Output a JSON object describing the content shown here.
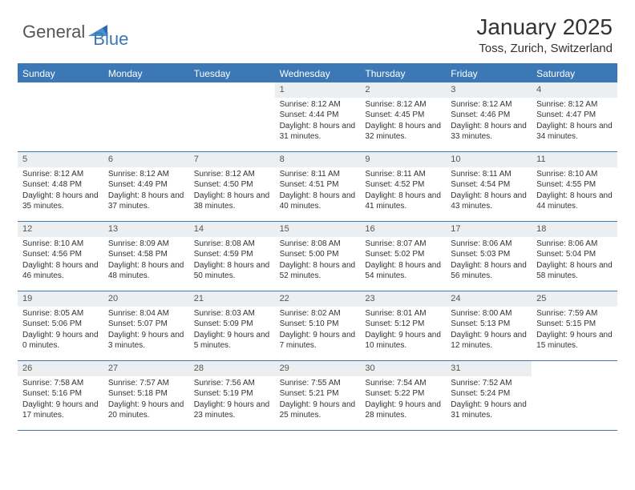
{
  "brand": {
    "part1": "General",
    "part2": "Blue"
  },
  "title": "January 2025",
  "location": "Toss, Zurich, Switzerland",
  "header_bg": "#3b78b5",
  "day_header_bg": "#eceff2",
  "weekdays": [
    "Sunday",
    "Monday",
    "Tuesday",
    "Wednesday",
    "Thursday",
    "Friday",
    "Saturday"
  ],
  "weeks": [
    [
      null,
      null,
      null,
      {
        "n": "1",
        "sr": "8:12 AM",
        "ss": "4:44 PM",
        "dh": "8",
        "dm": "31"
      },
      {
        "n": "2",
        "sr": "8:12 AM",
        "ss": "4:45 PM",
        "dh": "8",
        "dm": "32"
      },
      {
        "n": "3",
        "sr": "8:12 AM",
        "ss": "4:46 PM",
        "dh": "8",
        "dm": "33"
      },
      {
        "n": "4",
        "sr": "8:12 AM",
        "ss": "4:47 PM",
        "dh": "8",
        "dm": "34"
      }
    ],
    [
      {
        "n": "5",
        "sr": "8:12 AM",
        "ss": "4:48 PM",
        "dh": "8",
        "dm": "35"
      },
      {
        "n": "6",
        "sr": "8:12 AM",
        "ss": "4:49 PM",
        "dh": "8",
        "dm": "37"
      },
      {
        "n": "7",
        "sr": "8:12 AM",
        "ss": "4:50 PM",
        "dh": "8",
        "dm": "38"
      },
      {
        "n": "8",
        "sr": "8:11 AM",
        "ss": "4:51 PM",
        "dh": "8",
        "dm": "40"
      },
      {
        "n": "9",
        "sr": "8:11 AM",
        "ss": "4:52 PM",
        "dh": "8",
        "dm": "41"
      },
      {
        "n": "10",
        "sr": "8:11 AM",
        "ss": "4:54 PM",
        "dh": "8",
        "dm": "43"
      },
      {
        "n": "11",
        "sr": "8:10 AM",
        "ss": "4:55 PM",
        "dh": "8",
        "dm": "44"
      }
    ],
    [
      {
        "n": "12",
        "sr": "8:10 AM",
        "ss": "4:56 PM",
        "dh": "8",
        "dm": "46"
      },
      {
        "n": "13",
        "sr": "8:09 AM",
        "ss": "4:58 PM",
        "dh": "8",
        "dm": "48"
      },
      {
        "n": "14",
        "sr": "8:08 AM",
        "ss": "4:59 PM",
        "dh": "8",
        "dm": "50"
      },
      {
        "n": "15",
        "sr": "8:08 AM",
        "ss": "5:00 PM",
        "dh": "8",
        "dm": "52"
      },
      {
        "n": "16",
        "sr": "8:07 AM",
        "ss": "5:02 PM",
        "dh": "8",
        "dm": "54"
      },
      {
        "n": "17",
        "sr": "8:06 AM",
        "ss": "5:03 PM",
        "dh": "8",
        "dm": "56"
      },
      {
        "n": "18",
        "sr": "8:06 AM",
        "ss": "5:04 PM",
        "dh": "8",
        "dm": "58"
      }
    ],
    [
      {
        "n": "19",
        "sr": "8:05 AM",
        "ss": "5:06 PM",
        "dh": "9",
        "dm": "0"
      },
      {
        "n": "20",
        "sr": "8:04 AM",
        "ss": "5:07 PM",
        "dh": "9",
        "dm": "3"
      },
      {
        "n": "21",
        "sr": "8:03 AM",
        "ss": "5:09 PM",
        "dh": "9",
        "dm": "5"
      },
      {
        "n": "22",
        "sr": "8:02 AM",
        "ss": "5:10 PM",
        "dh": "9",
        "dm": "7"
      },
      {
        "n": "23",
        "sr": "8:01 AM",
        "ss": "5:12 PM",
        "dh": "9",
        "dm": "10"
      },
      {
        "n": "24",
        "sr": "8:00 AM",
        "ss": "5:13 PM",
        "dh": "9",
        "dm": "12"
      },
      {
        "n": "25",
        "sr": "7:59 AM",
        "ss": "5:15 PM",
        "dh": "9",
        "dm": "15"
      }
    ],
    [
      {
        "n": "26",
        "sr": "7:58 AM",
        "ss": "5:16 PM",
        "dh": "9",
        "dm": "17"
      },
      {
        "n": "27",
        "sr": "7:57 AM",
        "ss": "5:18 PM",
        "dh": "9",
        "dm": "20"
      },
      {
        "n": "28",
        "sr": "7:56 AM",
        "ss": "5:19 PM",
        "dh": "9",
        "dm": "23"
      },
      {
        "n": "29",
        "sr": "7:55 AM",
        "ss": "5:21 PM",
        "dh": "9",
        "dm": "25"
      },
      {
        "n": "30",
        "sr": "7:54 AM",
        "ss": "5:22 PM",
        "dh": "9",
        "dm": "28"
      },
      {
        "n": "31",
        "sr": "7:52 AM",
        "ss": "5:24 PM",
        "dh": "9",
        "dm": "31"
      },
      null
    ]
  ]
}
